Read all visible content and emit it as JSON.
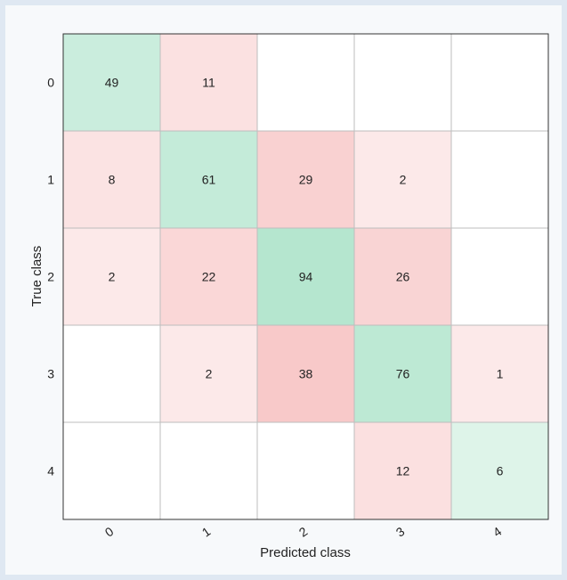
{
  "chart_data": {
    "type": "heatmap",
    "title": "",
    "xlabel": "Predicted class",
    "ylabel": "True class",
    "x_categories": [
      "0",
      "1",
      "2",
      "3",
      "4"
    ],
    "y_categories": [
      "0",
      "1",
      "2",
      "3",
      "4"
    ],
    "matrix": [
      [
        49,
        11,
        0,
        0,
        0
      ],
      [
        8,
        61,
        29,
        2,
        0
      ],
      [
        2,
        22,
        94,
        26,
        0
      ],
      [
        0,
        2,
        38,
        76,
        1
      ],
      [
        0,
        0,
        0,
        12,
        6
      ]
    ],
    "zero_cells_blank": true,
    "colors": {
      "diagonal": "#b5e6cf",
      "off_diagonal": "#f8c9c9",
      "empty": "#ffffff",
      "grid": "#bdbdbd",
      "background": "#dfe8f2"
    },
    "grid": true,
    "legend": "none"
  }
}
